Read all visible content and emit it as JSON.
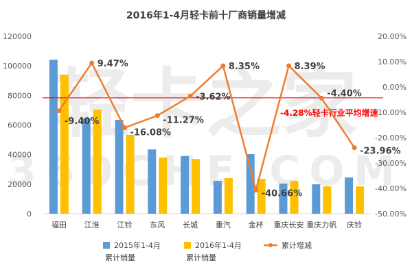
{
  "chart_data": {
    "type": "bar",
    "title": "2016年1-4月轻卡前十厂商销量增减",
    "categories": [
      "福田",
      "江淮",
      "江铃",
      "东风",
      "长城",
      "重汽",
      "金杯",
      "重庆长安",
      "重庆力帆",
      "庆铃"
    ],
    "series": [
      {
        "name": "2015年1-4月累计销量",
        "legend_lines": [
          "2015年1-4月",
          "累计销量"
        ],
        "type": "bar",
        "axis": "left",
        "color": "#5B9BD5",
        "values": [
          104200,
          64400,
          63500,
          43500,
          39000,
          22200,
          40300,
          20400,
          19900,
          24500
        ]
      },
      {
        "name": "2016年1-4月累计销量",
        "legend_lines": [
          "2016年1-4月",
          "累计销量"
        ],
        "type": "bar",
        "axis": "left",
        "color": "#FFC000",
        "values": [
          94000,
          70400,
          53300,
          38000,
          37000,
          24100,
          23600,
          22200,
          18500,
          18500
        ]
      },
      {
        "name": "累计增减",
        "legend_lines": [
          "累计增减"
        ],
        "type": "line",
        "axis": "right",
        "color": "#ED7D31",
        "values": [
          -9.4,
          9.47,
          -16.08,
          -11.27,
          -3.62,
          8.35,
          -40.66,
          8.39,
          -4.4,
          -23.96
        ],
        "labels": [
          "-9.40%",
          "9.47%",
          "-16.08%",
          "-11.27%",
          "-3.62%",
          "8.35%",
          "-40.66%",
          "8.39%",
          "-4.40%",
          "-23.96%"
        ]
      }
    ],
    "left_axis": {
      "ylim": [
        0,
        120000
      ],
      "ticks": [
        "0",
        "20000",
        "40000",
        "60000",
        "80000",
        "100000",
        "120000"
      ]
    },
    "right_axis": {
      "ylim": [
        -50,
        20
      ],
      "ticks": [
        "-50.00%",
        "-40.00%",
        "-30.00%",
        "-20.00%",
        "-10.00%",
        "0.00%",
        "10.00%",
        "20.00%"
      ]
    },
    "reference_line": {
      "value": -4.28,
      "label": "-4.28%轻卡行业平均增速",
      "color": "#FF0000"
    },
    "legend_position": "bottom",
    "watermark": "轻卡之家 360CHE.COM"
  }
}
